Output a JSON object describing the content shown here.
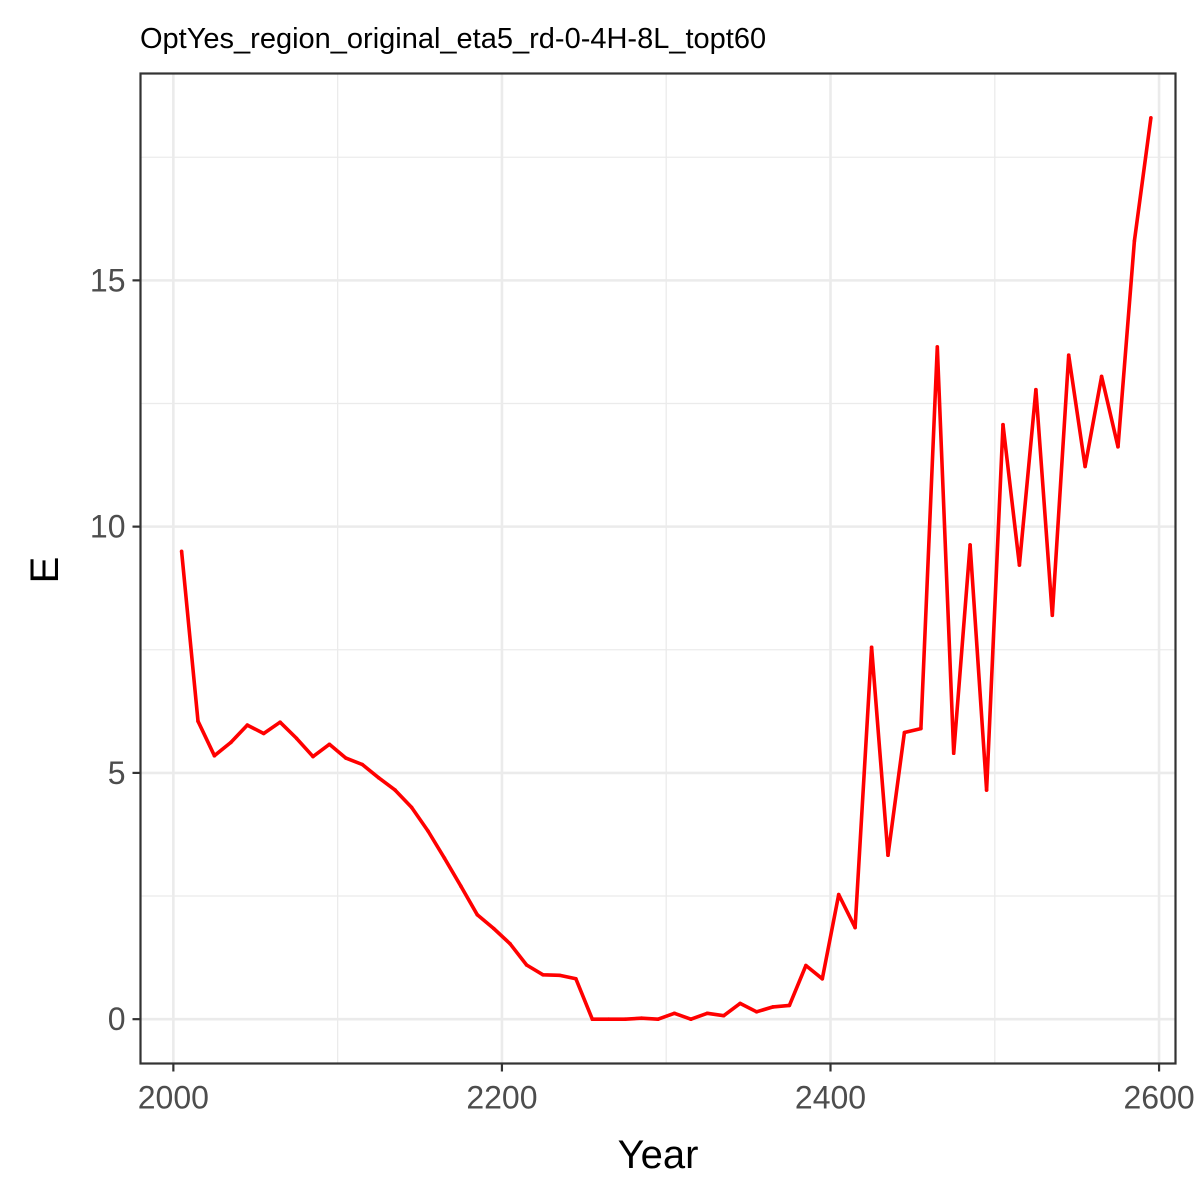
{
  "chart_data": {
    "type": "line",
    "title": "OptYes_region_original_eta5_rd-0-4H-8L_topt60",
    "xlabel": "Year",
    "ylabel": "E",
    "xlim": [
      1980,
      2610
    ],
    "ylim": [
      -0.9,
      19.2
    ],
    "x_major_ticks": [
      2000,
      2200,
      2400,
      2600
    ],
    "x_tick_labels": [
      "2000",
      "2200",
      "2400",
      "2600"
    ],
    "x_minor_ticks": [
      2100,
      2300,
      2500
    ],
    "y_major_ticks": [
      0,
      5,
      10,
      15
    ],
    "y_tick_labels": [
      "0",
      "5",
      "10",
      "15"
    ],
    "y_minor_ticks": [
      2.5,
      7.5,
      12.5,
      17.5
    ],
    "grid": true,
    "legend": "none",
    "colors": {
      "line": "#ff0000",
      "panel_border": "#333333",
      "grid": "#ebebeb"
    },
    "series": [
      {
        "x": [
          2005,
          2015,
          2025,
          2035,
          2045,
          2055,
          2065,
          2075,
          2085,
          2095,
          2105,
          2115,
          2125,
          2135,
          2145,
          2155,
          2165,
          2175,
          2185,
          2195,
          2205,
          2215,
          2225,
          2235,
          2245,
          2255,
          2265,
          2275,
          2285,
          2295,
          2305,
          2315,
          2325,
          2335,
          2345,
          2355,
          2365,
          2375,
          2385,
          2395,
          2405,
          2415,
          2425,
          2435,
          2445,
          2455,
          2465,
          2475,
          2485,
          2495,
          2505,
          2515,
          2525,
          2535,
          2545,
          2555,
          2565,
          2575,
          2585,
          2595
        ],
        "values": [
          9.5,
          6.05,
          5.35,
          5.62,
          5.97,
          5.8,
          6.03,
          5.7,
          5.33,
          5.58,
          5.3,
          5.17,
          4.9,
          4.65,
          4.3,
          3.82,
          3.27,
          2.7,
          2.12,
          1.84,
          1.53,
          1.1,
          0.9,
          0.89,
          0.82,
          0.0,
          0.0,
          0.0,
          0.02,
          0.0,
          0.12,
          0.0,
          0.12,
          0.07,
          0.32,
          0.15,
          0.25,
          0.28,
          1.09,
          0.82,
          2.53,
          1.86,
          7.55,
          3.33,
          5.82,
          5.9,
          13.65,
          5.4,
          9.63,
          4.65,
          12.07,
          9.22,
          12.78,
          8.2,
          13.48,
          11.22,
          13.05,
          11.62,
          15.8,
          18.3
        ]
      }
    ]
  }
}
